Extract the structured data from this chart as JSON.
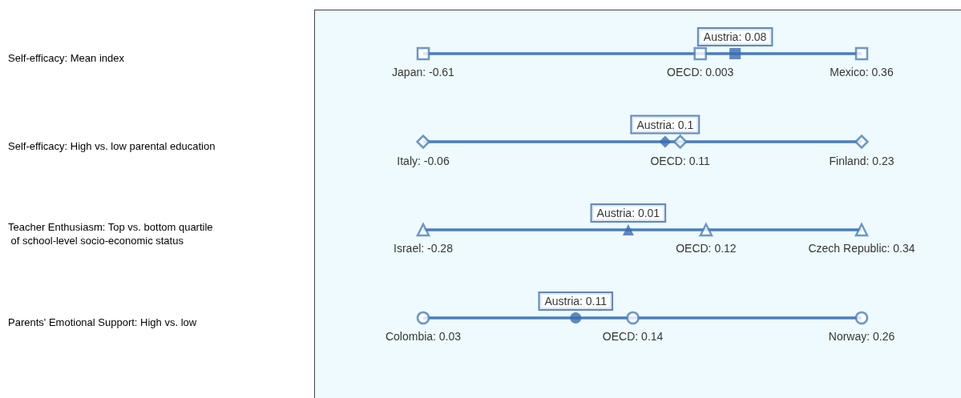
{
  "chart_data": {
    "type": "other",
    "data_labels": true,
    "categories": [
      "Self-efficacy: Mean index",
      "Self-efficacy: High vs. low parental education",
      "Teacher Enthusiasm: Top vs. bottom quartile of school-level socio-economic status",
      "Parents' Emotional Support: High vs. low"
    ],
    "series": [
      {
        "color": "#4a7ebb",
        "values": [
          -0.61,
          -0.06,
          -0.28,
          0.03
        ],
        "value_labels": [
          "Japan: -0.61",
          "Italy: -0.06",
          "Israel: -0.28",
          "Colombia: 0.03"
        ]
      },
      {
        "color": "#4a7ebb",
        "values": [
          0.003,
          0.11,
          0.12,
          0.14
        ],
        "value_labels": [
          "OECD: 0.003",
          "OECD: 0.11",
          "OECD: 0.12",
          "OECD: 0.14"
        ]
      },
      {
        "color": "#4a7ebb",
        "values": [
          0.36,
          0.23,
          0.34,
          0.26
        ],
        "value_labels": [
          "Mexico: 0.36",
          "Finland: 0.23",
          "Czech Republic: 0.34",
          "Norway: 0.26"
        ]
      },
      {
        "color": "#3a6cb0",
        "values": [
          0.08,
          0.1,
          0.01,
          0.11
        ],
        "value_labels": [
          "Austria: 0.08",
          "Austria: 0.1",
          "Austria: 0.01",
          "Austria: 0.11"
        ]
      }
    ]
  }
}
